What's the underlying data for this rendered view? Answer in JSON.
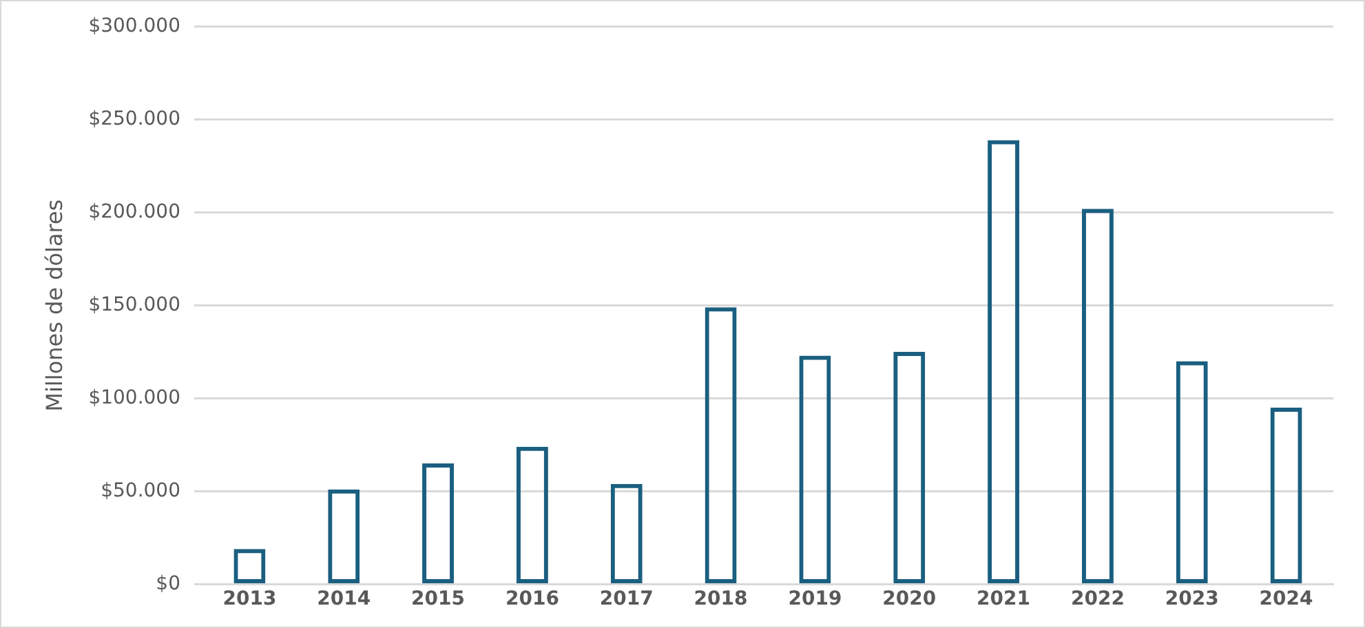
{
  "chart_data": {
    "type": "bar",
    "ylabel": "Millones de dólares",
    "categories": [
      "2013",
      "2014",
      "2015",
      "2016",
      "2017",
      "2018",
      "2019",
      "2020",
      "2021",
      "2022",
      "2023",
      "2024"
    ],
    "values": [
      19000,
      51000,
      65000,
      74000,
      54000,
      149000,
      123000,
      125000,
      239000,
      202000,
      120000,
      95000
    ],
    "color": "#1a5f80",
    "ylim": [
      0,
      300000
    ],
    "yticks": [
      {
        "value": 0,
        "label": "$0"
      },
      {
        "value": 50000,
        "label": "$50.000"
      },
      {
        "value": 100000,
        "label": "$100.000"
      },
      {
        "value": 150000,
        "label": "$150.000"
      },
      {
        "value": 200000,
        "label": "$200.000"
      },
      {
        "value": 250000,
        "label": "$250.000"
      },
      {
        "value": 300000,
        "label": "$300.000"
      }
    ],
    "grid": "y",
    "legend": false
  }
}
